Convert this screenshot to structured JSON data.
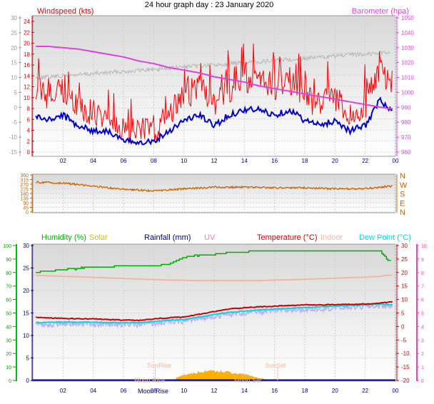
{
  "title": "24 hour graph day : 23 January 2020",
  "x_ticks": [
    "02",
    "04",
    "06",
    "08",
    "10",
    "12",
    "14",
    "16",
    "18",
    "20",
    "22",
    "00"
  ],
  "colors": {
    "windspeed_label": "#e00000",
    "barometer": "#e040e0",
    "gust": "#ff0000",
    "avg_wind": "#0000cc",
    "wind_gray": "#b8b8b8",
    "direction": "#c86400",
    "humidity": "#00b000",
    "solar": "#c8c800",
    "rainfall": "#000080",
    "uv": "#ff80a0",
    "temperature": "#cc0000",
    "indoor": "#f0b8a0",
    "dewpoint": "#00d8e0",
    "lilac": "#b8b0f0",
    "solar_fill": "#ffb000",
    "right_axis3": "#ff40a0",
    "left_axis3": "#00c000"
  },
  "panel1": {
    "label_left": "Windspeed (kts)",
    "label_right": "Barometer (hpa)",
    "left_axis_ticks": [
      "24",
      "22",
      "20",
      "18",
      "16",
      "14",
      "12",
      "10",
      "8",
      "6",
      "4",
      "2",
      "0"
    ],
    "gray_axis_ticks": [
      "30",
      "25",
      "20",
      "15",
      "10",
      "5",
      "0",
      "-5",
      "-10",
      "-15"
    ],
    "right_axis_ticks": [
      "1050",
      "1040",
      "1030",
      "1020",
      "1010",
      "1000",
      "990",
      "980",
      "970",
      "960"
    ]
  },
  "panel2": {
    "left_ticks": [
      "360",
      "315",
      "270",
      "225",
      "180",
      "135",
      "90",
      "45",
      "0"
    ],
    "right_labels": [
      "N",
      "W",
      "S",
      "E",
      "N"
    ]
  },
  "panel3": {
    "labels": {
      "humidity": "Humidity (%)",
      "solar": "Solar",
      "rainfall": "Rainfall (mm)",
      "uv": "UV",
      "temperature": "Temperature (°C)",
      "indoor": "Indoor",
      "dewpoint": "Dew Point (°C)"
    },
    "humidity_ticks": [
      "100",
      "90",
      "80",
      "70",
      "60",
      "50",
      "40",
      "30",
      "20",
      "10",
      "0"
    ],
    "left_ticks": [
      "30",
      "25",
      "20",
      "15",
      "10",
      "5",
      "0"
    ],
    "right_ticks": [
      "30",
      "25",
      "20",
      "15",
      "10",
      "5",
      "0",
      "-5",
      "-10",
      "-15",
      "-20"
    ],
    "uv_ticks": [
      "10",
      "9",
      "8",
      "7",
      "6",
      "5",
      "4",
      "3",
      "2",
      "1",
      "0"
    ],
    "annotations": {
      "sunrise": "SunRise",
      "sunset": "SunSet",
      "moonrise": "Moon Rise",
      "moonrise_bottom": "Moon Rise",
      "moonset": "Moon Set"
    }
  },
  "chart_data": [
    {
      "type": "line",
      "title": "24 hour graph day : 23 January 2020",
      "x": [
        "00:00",
        "01:00",
        "02:00",
        "03:00",
        "04:00",
        "05:00",
        "06:00",
        "07:00",
        "08:00",
        "09:00",
        "10:00",
        "11:00",
        "12:00",
        "13:00",
        "14:00",
        "15:00",
        "16:00",
        "17:00",
        "18:00",
        "19:00",
        "20:00",
        "21:00",
        "22:00",
        "23:00",
        "23:30"
      ],
      "ylabel": "Windspeed (kts)",
      "y2label": "Barometer (hpa)",
      "ylim": [
        0,
        25
      ],
      "y2lim": [
        950,
        1050
      ],
      "series": [
        {
          "name": "Windspeed (kts)",
          "values": [
            7,
            6,
            7,
            5,
            4,
            4,
            2,
            2,
            2,
            4,
            6,
            7,
            5,
            7,
            8,
            8,
            7,
            8,
            6,
            5,
            6,
            4,
            5,
            10,
            8
          ]
        },
        {
          "name": "Barometer (hpa)",
          "axis": "right",
          "values": [
            1030,
            1030,
            1029,
            1028,
            1026,
            1024,
            1022,
            1019,
            1017,
            1014,
            1012,
            1010,
            1007,
            1005,
            1003,
            1000,
            998,
            996,
            994,
            992,
            990,
            988,
            986,
            984,
            983
          ]
        }
      ]
    },
    {
      "type": "scatter",
      "ylabel": "",
      "ylim": [
        0,
        360
      ],
      "x": [
        "00:00",
        "02:00",
        "04:00",
        "06:00",
        "08:00",
        "10:00",
        "12:00",
        "14:00",
        "16:00",
        "18:00",
        "20:00",
        "22:00",
        "23:30"
      ],
      "series": [
        {
          "name": "",
          "values": [
            290,
            280,
            250,
            220,
            205,
            225,
            240,
            240,
            235,
            235,
            225,
            225,
            250
          ]
        }
      ]
    },
    {
      "type": "line",
      "x": [
        "00:00",
        "01:00",
        "02:00",
        "03:00",
        "04:00",
        "05:00",
        "06:00",
        "07:00",
        "08:00",
        "09:00",
        "10:00",
        "11:00",
        "12:00",
        "13:00",
        "14:00",
        "15:00",
        "16:00",
        "17:00",
        "18:00",
        "19:00",
        "20:00",
        "21:00",
        "22:00",
        "23:00",
        "23:30"
      ],
      "ylim": [
        0,
        30
      ],
      "y2lim": [
        -20,
        30
      ],
      "series": [
        {
          "name": "Humidity (%)",
          "axis": "humidity",
          "values": [
            80,
            81,
            82,
            83,
            84,
            84,
            85,
            85,
            85,
            86,
            91,
            93,
            93,
            95,
            95,
            96,
            96,
            96,
            96,
            96,
            96,
            96,
            96,
            96,
            89
          ]
        },
        {
          "name": "Temperature (°C)",
          "values": [
            3.5,
            3.2,
            3.0,
            2.9,
            2.8,
            2.6,
            2.4,
            2.2,
            2.8,
            3.2,
            3.5,
            4.5,
            5.5,
            6.5,
            7.0,
            7.3,
            7.5,
            7.8,
            8.0,
            8.0,
            8.1,
            8.2,
            8.3,
            8.6,
            9.0
          ]
        },
        {
          "name": "Dew Point (°C)",
          "values": [
            1.5,
            1.5,
            1.7,
            1.6,
            1.6,
            1.4,
            1.4,
            1.4,
            1.8,
            2.3,
            2.6,
            3.4,
            4.5,
            5.2,
            5.7,
            6.1,
            6.4,
            6.7,
            7.0,
            7.3,
            7.5,
            7.8,
            8.0,
            8.3,
            8.2
          ]
        },
        {
          "name": "Indoor",
          "values": [
            19,
            18.8,
            18.6,
            18.4,
            18.2,
            18.0,
            17.8,
            17.6,
            17.4,
            17.2,
            17.1,
            17.0,
            17.0,
            17.0,
            17.0,
            17.0,
            17.2,
            17.3,
            17.5,
            17.7,
            17.9,
            18.1,
            18.3,
            18.6,
            19.0
          ]
        },
        {
          "name": "Solar",
          "values": [
            0,
            0,
            0,
            0,
            0,
            0,
            0,
            0,
            0,
            0,
            0.5,
            0.8,
            0.9,
            0.8,
            0.6,
            0.2,
            0,
            0,
            0,
            0,
            0,
            0,
            0,
            0,
            0
          ]
        }
      ]
    }
  ]
}
